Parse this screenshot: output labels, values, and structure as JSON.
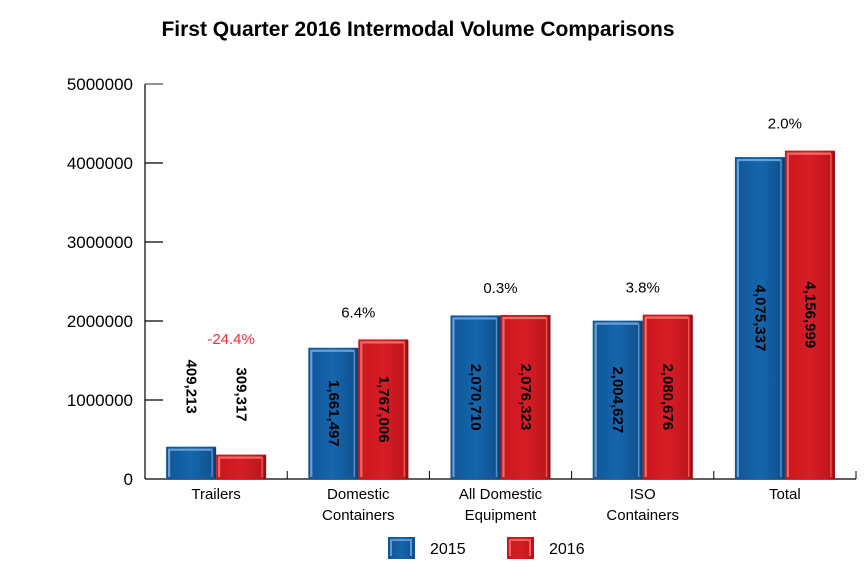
{
  "chart_data": {
    "type": "bar",
    "title": "First Quarter 2016 Intermodal Volume Comparisons",
    "xlabel": "",
    "ylabel": "",
    "ylim": [
      0,
      5000000
    ],
    "yticks": [
      0,
      1000000,
      2000000,
      3000000,
      4000000,
      5000000
    ],
    "ytick_labels": [
      "0",
      "1000000",
      "2000000",
      "3000000",
      "4000000",
      "5000000"
    ],
    "grid": false,
    "legend_position": "bottom-center",
    "categories": [
      [
        "Trailers"
      ],
      [
        "Domestic",
        "Containers"
      ],
      [
        "All Domestic",
        "Equipment"
      ],
      [
        "ISO",
        "Containers"
      ],
      [
        "Total"
      ]
    ],
    "series": [
      {
        "name": "2015",
        "color": "#1462a6",
        "values": [
          409213,
          1661497,
          2070710,
          2004627,
          4075337
        ],
        "labels": [
          "409,213",
          "1,661,497",
          "2,070,710",
          "2,004,627",
          "4,075,337"
        ]
      },
      {
        "name": "2016",
        "color": "#d21a22",
        "values": [
          309317,
          1767006,
          2076323,
          2080676,
          4156999
        ],
        "labels": [
          "309,317",
          "1,767,006",
          "2,076,323",
          "2,080,676",
          "4,156,999"
        ]
      }
    ],
    "annotations": [
      {
        "category": 0,
        "text": "-24.4%",
        "color": "#e8323c"
      },
      {
        "category": 1,
        "text": "6.4%",
        "color": "#000000"
      },
      {
        "category": 2,
        "text": "0.3%",
        "color": "#000000"
      },
      {
        "category": 3,
        "text": "3.8%",
        "color": "#000000"
      },
      {
        "category": 4,
        "text": "2.0%",
        "color": "#000000"
      }
    ]
  }
}
